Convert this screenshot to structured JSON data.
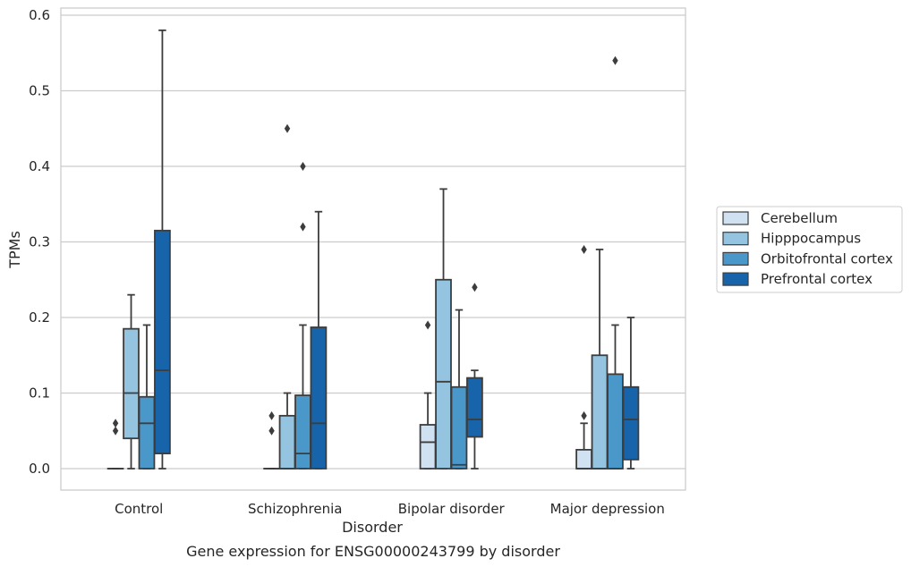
{
  "chart_data": {
    "type": "box",
    "xlabel": "Disorder",
    "ylabel": "TPMs",
    "caption": "Gene expression for ENSG00000243799 by disorder",
    "ylim": [
      -0.028,
      0.61
    ],
    "yticks": [
      "0.0",
      "0.1",
      "0.2",
      "0.3",
      "0.4",
      "0.5",
      "0.6"
    ],
    "grid": "horizontal",
    "legend_position": "right",
    "categories": [
      "Control",
      "Schizophrenia",
      "Bipolar disorder",
      "Major depression"
    ],
    "series": [
      {
        "name": "Cerebellum",
        "color": "#d0e1f2",
        "boxes": [
          {
            "q1": 0.0,
            "median": 0.0,
            "q3": 0.0,
            "whisker_low": 0.0,
            "whisker_high": 0.0,
            "outliers": [
              0.05,
              0.06
            ]
          },
          {
            "q1": 0.0,
            "median": 0.0,
            "q3": 0.0,
            "whisker_low": 0.0,
            "whisker_high": 0.0,
            "outliers": [
              0.05,
              0.07
            ]
          },
          {
            "q1": 0.0,
            "median": 0.035,
            "q3": 0.058,
            "whisker_low": 0.0,
            "whisker_high": 0.1,
            "outliers": [
              0.19
            ]
          },
          {
            "q1": 0.0,
            "median": 0.0,
            "q3": 0.025,
            "whisker_low": 0.0,
            "whisker_high": 0.06,
            "outliers": [
              0.07,
              0.29
            ]
          }
        ]
      },
      {
        "name": "Hipppocampus",
        "color": "#94c4df",
        "boxes": [
          {
            "q1": 0.04,
            "median": 0.1,
            "q3": 0.185,
            "whisker_low": 0.0,
            "whisker_high": 0.23,
            "outliers": []
          },
          {
            "q1": 0.0,
            "median": 0.0,
            "q3": 0.07,
            "whisker_low": 0.0,
            "whisker_high": 0.1,
            "outliers": [
              0.45
            ]
          },
          {
            "q1": 0.0,
            "median": 0.115,
            "q3": 0.25,
            "whisker_low": 0.0,
            "whisker_high": 0.37,
            "outliers": []
          },
          {
            "q1": 0.0,
            "median": 0.0,
            "q3": 0.15,
            "whisker_low": 0.0,
            "whisker_high": 0.29,
            "outliers": []
          }
        ]
      },
      {
        "name": "Orbitofrontal cortex",
        "color": "#4a98c9",
        "boxes": [
          {
            "q1": 0.0,
            "median": 0.06,
            "q3": 0.095,
            "whisker_low": 0.0,
            "whisker_high": 0.19,
            "outliers": []
          },
          {
            "q1": 0.0,
            "median": 0.02,
            "q3": 0.097,
            "whisker_low": 0.0,
            "whisker_high": 0.19,
            "outliers": [
              0.32,
              0.4
            ]
          },
          {
            "q1": 0.0,
            "median": 0.005,
            "q3": 0.108,
            "whisker_low": 0.0,
            "whisker_high": 0.21,
            "outliers": []
          },
          {
            "q1": 0.0,
            "median": 0.0,
            "q3": 0.125,
            "whisker_low": 0.0,
            "whisker_high": 0.19,
            "outliers": [
              0.54
            ]
          }
        ]
      },
      {
        "name": "Prefrontal cortex",
        "color": "#1764ab",
        "boxes": [
          {
            "q1": 0.02,
            "median": 0.13,
            "q3": 0.315,
            "whisker_low": 0.0,
            "whisker_high": 0.58,
            "outliers": []
          },
          {
            "q1": 0.0,
            "median": 0.06,
            "q3": 0.187,
            "whisker_low": 0.0,
            "whisker_high": 0.34,
            "outliers": []
          },
          {
            "q1": 0.042,
            "median": 0.065,
            "q3": 0.12,
            "whisker_low": 0.0,
            "whisker_high": 0.13,
            "outliers": [
              0.24
            ]
          },
          {
            "q1": 0.012,
            "median": 0.065,
            "q3": 0.108,
            "whisker_low": 0.0,
            "whisker_high": 0.2,
            "outliers": []
          }
        ]
      }
    ]
  }
}
